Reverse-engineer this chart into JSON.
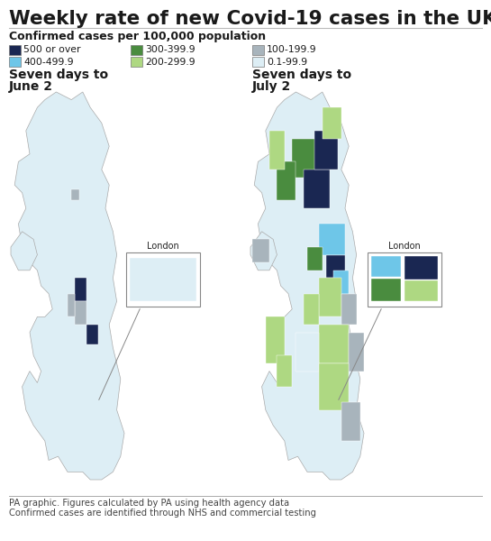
{
  "title": "Weekly rate of new Covid-19 cases in the UK",
  "subtitle": "Confirmed cases per 100,000 population",
  "legend_items": [
    {
      "label": "500 or over",
      "color": "#1a2752"
    },
    {
      "label": "400-499.9",
      "color": "#6ec6e8"
    },
    {
      "label": "300-399.9",
      "color": "#4a8c3f"
    },
    {
      "label": "200-299.9",
      "color": "#aed882"
    },
    {
      "label": "100-199.9",
      "color": "#a8b4bc"
    },
    {
      "label": "0.1-99.9",
      "color": "#ddeef5"
    }
  ],
  "map1_label_line1": "Seven days to",
  "map1_label_line2": "June 2",
  "map2_label_line1": "Seven days to",
  "map2_label_line2": "July 2",
  "footer_line1": "PA graphic. Figures calculated by PA using health agency data",
  "footer_line2": "Confirmed cases are identified through NHS and commercial testing",
  "background_color": "#ffffff",
  "text_color": "#1a1a1a",
  "london_label": "London",
  "default_color_light": "#ddeef5",
  "default_color_medium": "#c8dce6",
  "gray_color": "#a8b4bc",
  "dark_navy": "#1a2752",
  "medium_blue": "#6ec6e8",
  "dark_green": "#4a8c3f",
  "light_green": "#aed882"
}
